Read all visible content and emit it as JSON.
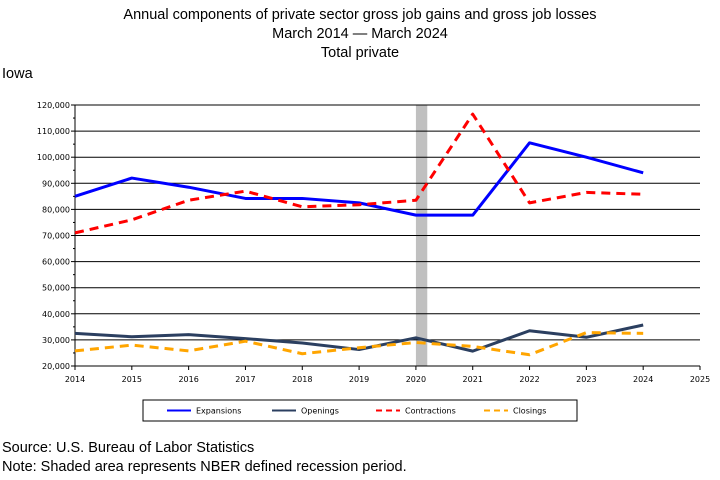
{
  "header": {
    "title_line1": "Annual components of private sector gross job gains and gross job losses",
    "title_line2": "March 2014 — March 2024",
    "title_line3": "Total private"
  },
  "state_label": "Iowa",
  "footer": {
    "source": "Source: U.S. Bureau of Labor Statistics",
    "note": "Note: Shaded area represents NBER defined recession period."
  },
  "chart_data": {
    "type": "line",
    "title": "Annual components of private sector gross job gains and gross job losses",
    "xlabel": "",
    "ylabel": "",
    "xlim": [
      2014,
      2025
    ],
    "ylim": [
      20000,
      120000
    ],
    "x_ticks": [
      "2014",
      "2015",
      "2016",
      "2017",
      "2018",
      "2019",
      "2020",
      "2021",
      "2022",
      "2023",
      "2024",
      "2025"
    ],
    "y_ticks": [
      "20,000",
      "30,000",
      "40,000",
      "50,000",
      "60,000",
      "70,000",
      "80,000",
      "90,000",
      "100,000",
      "110,000",
      "120,000"
    ],
    "grid": "horizontal",
    "legend_position": "bottom",
    "recession_shading": [
      2020.0,
      2020.2
    ],
    "x": [
      2014,
      2015,
      2016,
      2017,
      2018,
      2019,
      2020,
      2021,
      2022,
      2023,
      2024
    ],
    "series": [
      {
        "name": "Expansions",
        "color": "#0000ff",
        "dash": "solid",
        "values": [
          85000,
          92000,
          88500,
          84200,
          84200,
          82500,
          77800,
          77800,
          105500,
          100000,
          94000
        ]
      },
      {
        "name": "Openings",
        "color": "#2b3f60",
        "dash": "solid",
        "values": [
          32500,
          31200,
          32000,
          30500,
          28800,
          26300,
          30800,
          25700,
          33500,
          31000,
          35700
        ]
      },
      {
        "name": "Contractions",
        "color": "#ff0000",
        "dash": "dashed",
        "values": [
          71000,
          76000,
          83500,
          87000,
          81000,
          81800,
          83500,
          116500,
          82500,
          86500,
          85800
        ]
      },
      {
        "name": "Closings",
        "color": "#ffa500",
        "dash": "dashed",
        "values": [
          25800,
          28000,
          25800,
          29500,
          24700,
          27000,
          29000,
          27500,
          24300,
          32800,
          32500
        ]
      }
    ]
  }
}
